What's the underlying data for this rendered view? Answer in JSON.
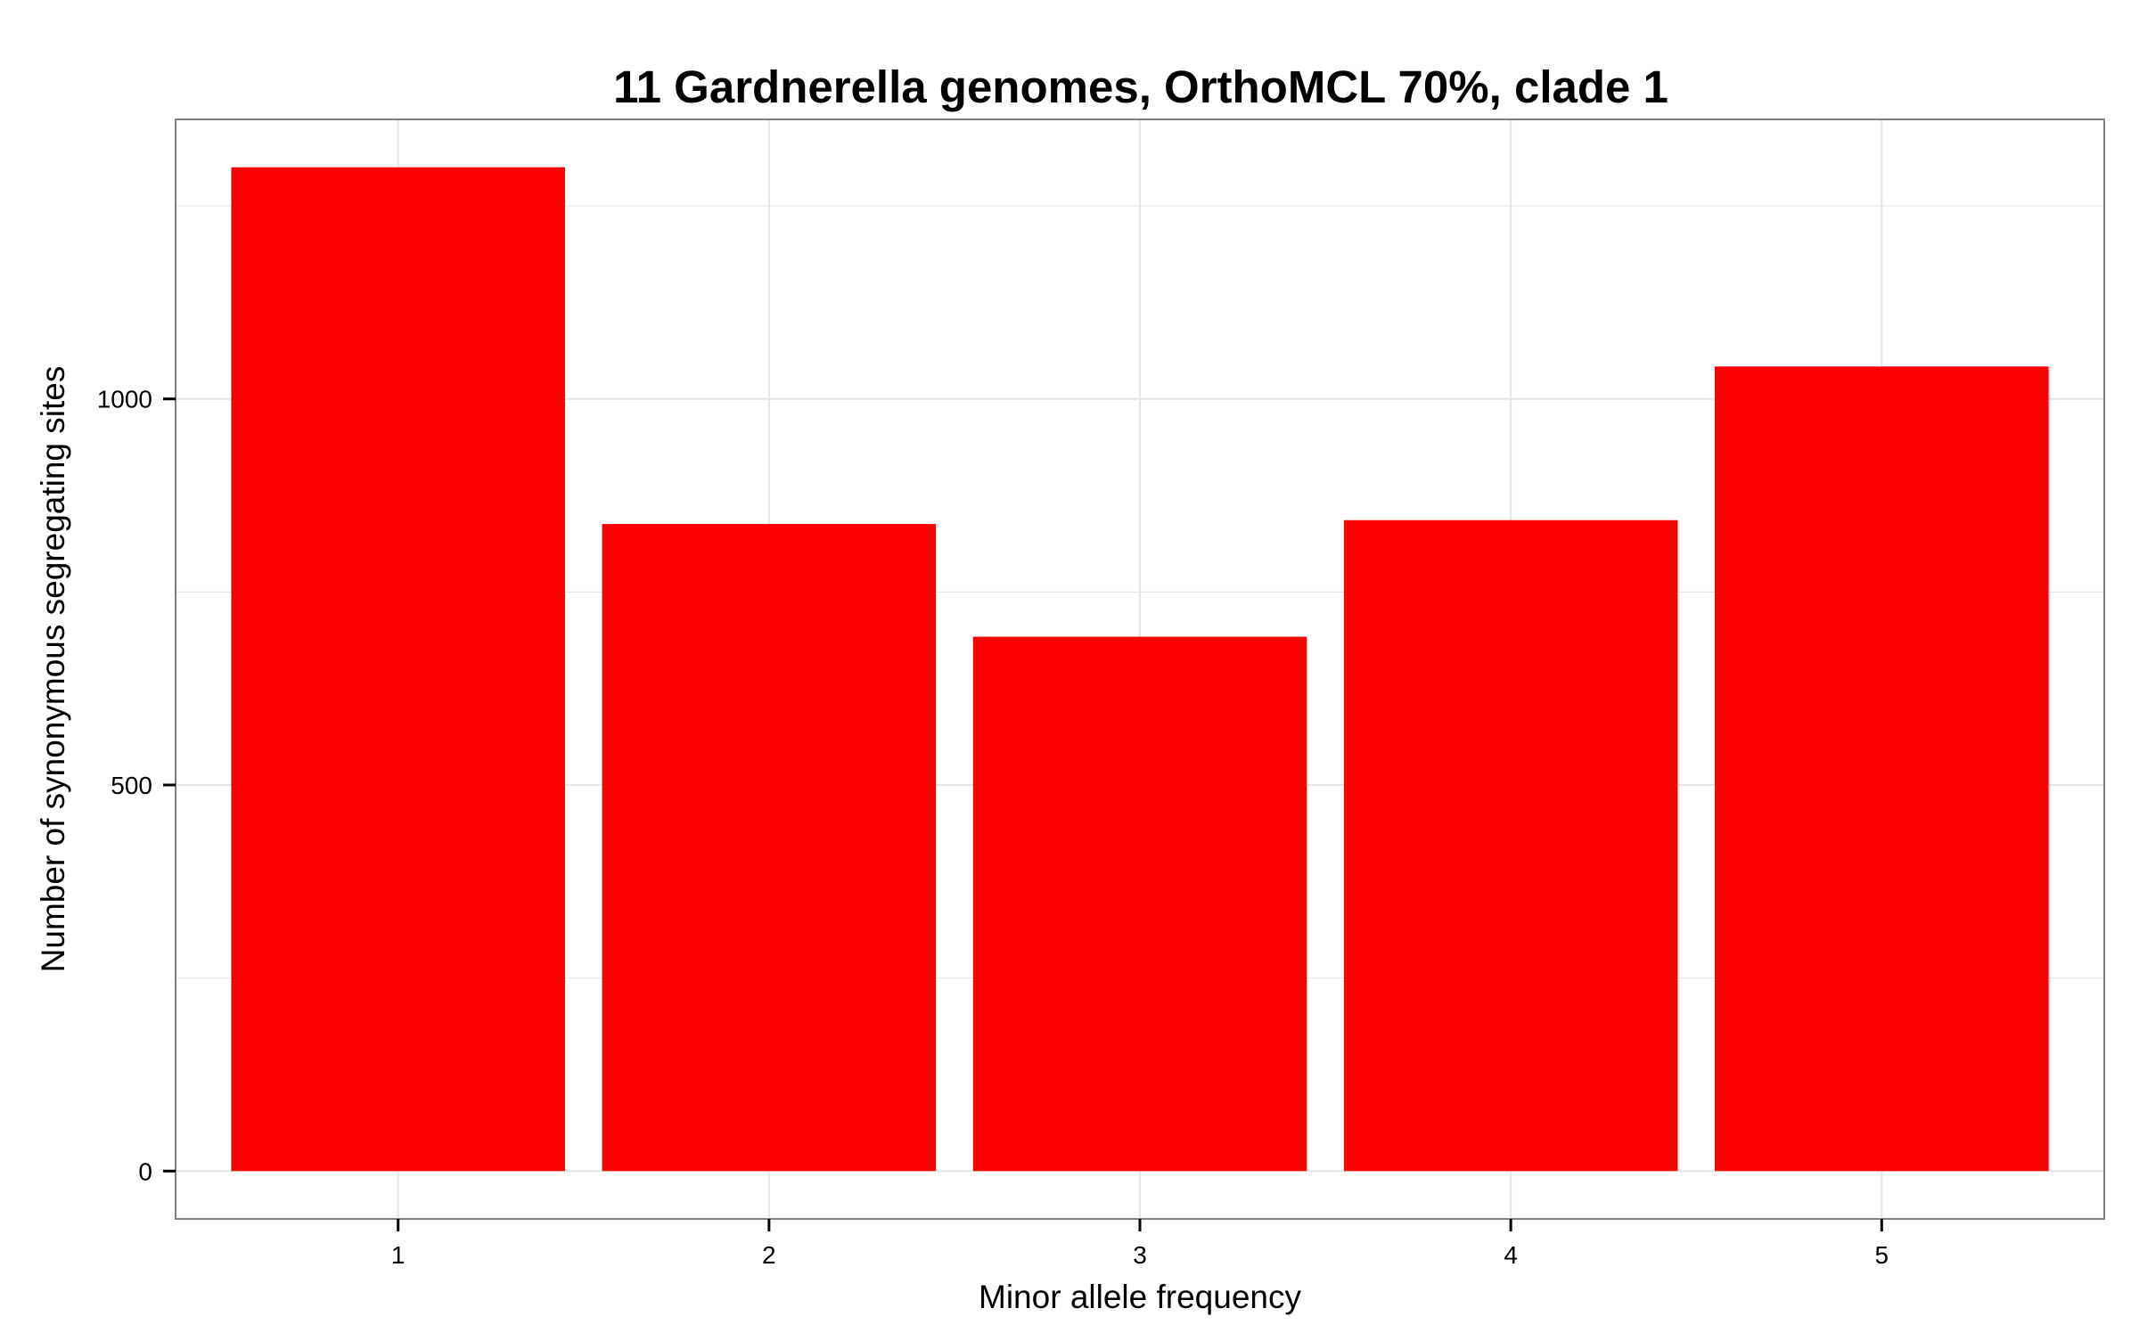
{
  "chart_data": {
    "type": "bar",
    "title": "11 Gardnerella genomes, OrthoMCL 70%, clade 1",
    "xlabel": "Minor allele frequency",
    "ylabel": "Number of synonymous segregating sites",
    "categories": [
      "1",
      "2",
      "3",
      "4",
      "5"
    ],
    "values": [
      1300,
      838,
      692,
      843,
      1042
    ],
    "ylim": [
      -62,
      1362
    ],
    "yticks": [
      0,
      500,
      1000
    ],
    "ytick_labels": [
      "0",
      "500",
      "1000"
    ],
    "grid": true,
    "legend": "none",
    "bar_color": "#ff0000",
    "panel_border_color": "#7f7f7f",
    "grid_color": "#e5e5e5"
  }
}
